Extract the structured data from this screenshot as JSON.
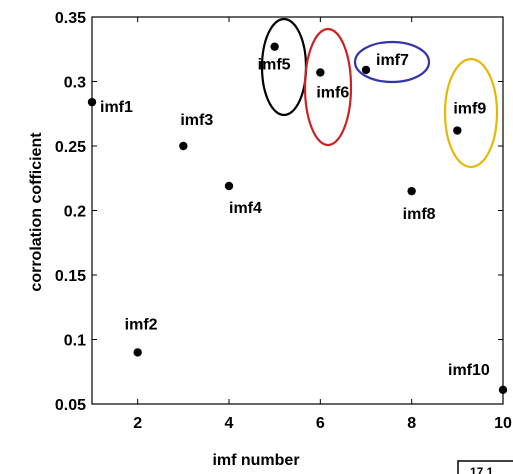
{
  "chart_data": {
    "type": "scatter",
    "title": "",
    "xlabel": "imf number",
    "ylabel": "corrolation cofficient",
    "xlim": [
      1,
      10
    ],
    "ylim": [
      0.05,
      0.35
    ],
    "xticks": [
      2,
      4,
      6,
      8,
      10
    ],
    "yticks": [
      0.05,
      0.1,
      0.15,
      0.2,
      0.25,
      0.3,
      0.35
    ],
    "ytick_labels": [
      "0.05",
      "0.1",
      "0.15",
      "0.2",
      "0.25",
      "0.3",
      "0.35"
    ],
    "grid": false,
    "marker_color": "#000000",
    "points": [
      {
        "label": "imf1",
        "x": 1,
        "y": 0.284
      },
      {
        "label": "imf2",
        "x": 2,
        "y": 0.09
      },
      {
        "label": "imf3",
        "x": 3,
        "y": 0.25
      },
      {
        "label": "imf4",
        "x": 4,
        "y": 0.219
      },
      {
        "label": "imf5",
        "x": 5,
        "y": 0.327
      },
      {
        "label": "imf6",
        "x": 6,
        "y": 0.307
      },
      {
        "label": "imf7",
        "x": 7,
        "y": 0.309
      },
      {
        "label": "imf8",
        "x": 8,
        "y": 0.215
      },
      {
        "label": "imf9",
        "x": 9,
        "y": 0.262
      },
      {
        "label": "imf10",
        "x": 10,
        "y": 0.061
      }
    ],
    "highlights": [
      {
        "target": "imf5",
        "color": "#000000"
      },
      {
        "target": "imf6",
        "color": "#cc2222"
      },
      {
        "target": "imf7",
        "color": "#3333aa"
      },
      {
        "target": "imf9",
        "color": "#e6b800"
      }
    ],
    "corner_text": "17 1"
  }
}
